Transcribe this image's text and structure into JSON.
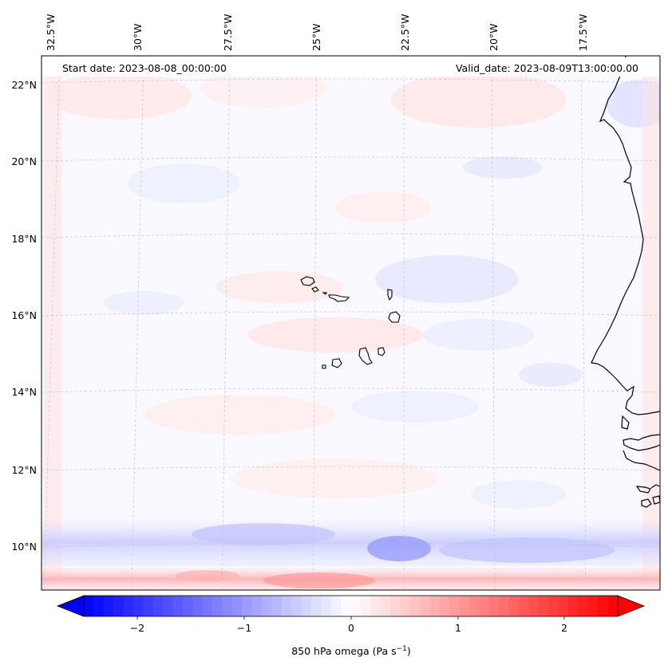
{
  "header": {
    "start_date": "Start date: 2023-08-08_00:00:00",
    "valid_date": "Valid_date: 2023-08-09T13:00:00.00"
  },
  "axes": {
    "lon_labels": [
      "32.5°W",
      "30°W",
      "27.5°W",
      "25°W",
      "22.5°W",
      "20°W",
      "17.5°W"
    ],
    "lat_labels": [
      "22°N",
      "20°N",
      "18°N",
      "16°N",
      "14°N",
      "12°N",
      "10°N"
    ]
  },
  "colorbar": {
    "title_main": "850 hPa omega (Pa s",
    "title_sup": "−1",
    "title_end": ")",
    "ticks": [
      "−2",
      "−1",
      "0",
      "1",
      "2"
    ],
    "min": -2.7,
    "max": 2.7,
    "low_color": "#0000ff",
    "mid_color": "#ffffff",
    "high_color": "#ff0000"
  },
  "colors": {
    "coast": "#000000",
    "grid": "#bdbdbd",
    "field_neutral": "#f9f9ff"
  }
}
